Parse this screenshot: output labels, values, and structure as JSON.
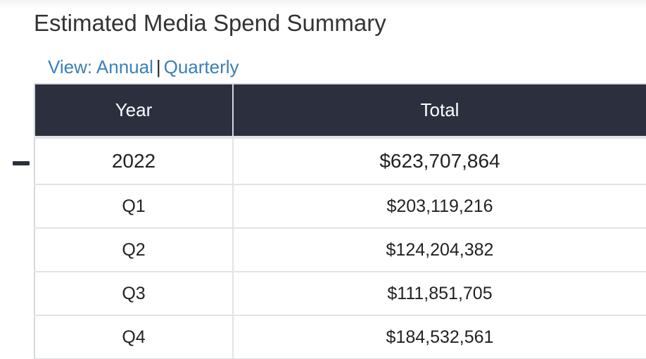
{
  "page": {
    "title": "Estimated Media Spend Summary"
  },
  "view_switch": {
    "annual_label": "View: Annual",
    "separator": "|",
    "quarterly_label": "Quarterly"
  },
  "table": {
    "columns": [
      "Year",
      "Total"
    ],
    "year_row": {
      "year": "2022",
      "total": "$623,707,864",
      "toggle_icon": "minus-icon"
    },
    "quarters": [
      {
        "label": "Q1",
        "total": "$203,119,216"
      },
      {
        "label": "Q2",
        "total": "$124,204,382"
      },
      {
        "label": "Q3",
        "total": "$111,851,705"
      },
      {
        "label": "Q4",
        "total": "$184,532,561"
      }
    ]
  },
  "colors": {
    "header_bg": "#2b2f3e",
    "link": "#3a7fb8"
  }
}
